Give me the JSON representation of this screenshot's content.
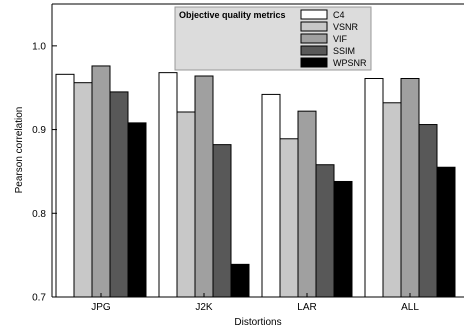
{
  "chart_data": {
    "type": "bar",
    "title": "",
    "xlabel": "Distortions",
    "ylabel": "Pearson correlation",
    "ylim": [
      0.7,
      1.05
    ],
    "yticks": [
      0.7,
      0.8,
      0.9,
      1.0
    ],
    "ytick_labels": [
      "0.7",
      "0.8",
      "0.9",
      "1.0"
    ],
    "grid": false,
    "legend_title": "Objective quality metrics",
    "legend_position": "top-center",
    "categories": [
      "JPG",
      "J2K",
      "LAR",
      "ALL"
    ],
    "series": [
      {
        "name": "C4",
        "color": "#ffffff",
        "values": [
          0.966,
          0.968,
          0.942,
          0.961
        ]
      },
      {
        "name": "VSNR",
        "color": "#c8c8c8",
        "values": [
          0.956,
          0.921,
          0.889,
          0.932
        ]
      },
      {
        "name": "VIF",
        "color": "#a0a0a0",
        "values": [
          0.976,
          0.964,
          0.922,
          0.961
        ]
      },
      {
        "name": "SSIM",
        "color": "#585858",
        "values": [
          0.945,
          0.882,
          0.858,
          0.906
        ]
      },
      {
        "name": "WPSNR",
        "color": "#000000",
        "values": [
          0.908,
          0.739,
          0.838,
          0.855
        ]
      }
    ]
  }
}
